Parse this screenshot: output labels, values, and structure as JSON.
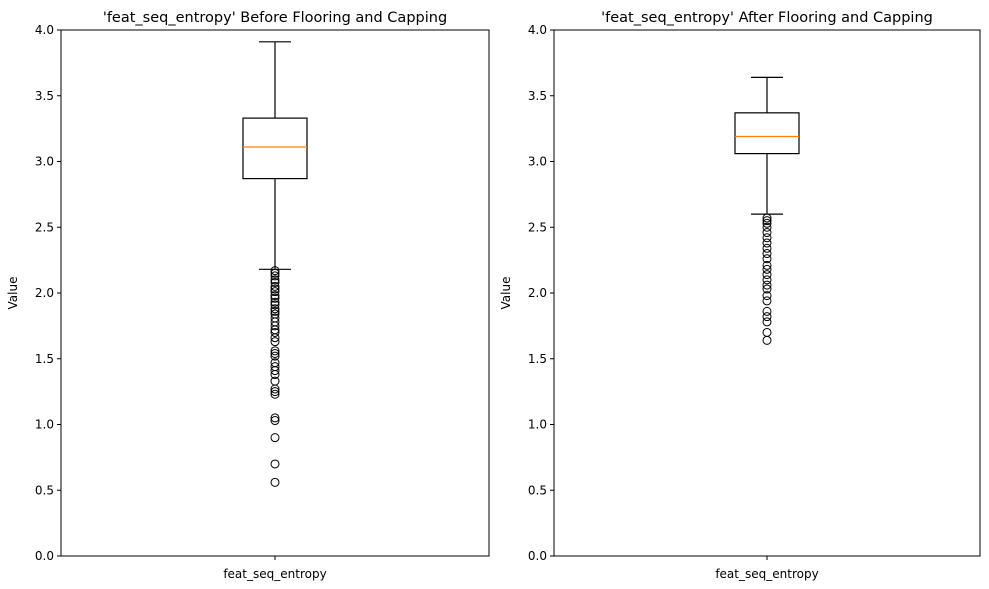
{
  "chart_data": [
    {
      "type": "box",
      "title": "'feat_seq_entropy' Before Flooring and Capping",
      "xlabel": "",
      "ylabel": "Value",
      "ylim": [
        0,
        4.0
      ],
      "yticks": [
        0.0,
        0.5,
        1.0,
        1.5,
        2.0,
        2.5,
        3.0,
        3.5,
        4.0
      ],
      "categories": [
        "feat_seq_entropy"
      ],
      "box": {
        "whisker_low": 2.18,
        "q1": 2.87,
        "median": 3.11,
        "q3": 3.33,
        "whisker_high": 3.91
      },
      "outliers": [
        0.56,
        0.7,
        0.9,
        1.03,
        1.05,
        1.23,
        1.25,
        1.27,
        1.33,
        1.38,
        1.41,
        1.44,
        1.47,
        1.52,
        1.54,
        1.56,
        1.63,
        1.66,
        1.7,
        1.72,
        1.75,
        1.78,
        1.81,
        1.84,
        1.86,
        1.88,
        1.91,
        1.93,
        1.96,
        1.98,
        2.01,
        2.03,
        2.05,
        2.08,
        2.1,
        2.13,
        2.15,
        2.17
      ],
      "colors": {
        "box": "#000000",
        "median": "#ff7f0e"
      },
      "grid": false
    },
    {
      "type": "box",
      "title": "'feat_seq_entropy' After Flooring and Capping",
      "xlabel": "",
      "ylabel": "Value",
      "ylim": [
        0,
        4.0
      ],
      "yticks": [
        0.0,
        0.5,
        1.0,
        1.5,
        2.0,
        2.5,
        3.0,
        3.5,
        4.0
      ],
      "categories": [
        "feat_seq_entropy"
      ],
      "box": {
        "whisker_low": 2.6,
        "q1": 3.06,
        "median": 3.19,
        "q3": 3.37,
        "whisker_high": 3.64
      },
      "outliers": [
        1.64,
        1.7,
        1.78,
        1.82,
        1.86,
        1.94,
        1.98,
        2.03,
        2.06,
        2.1,
        2.14,
        2.18,
        2.21,
        2.26,
        2.3,
        2.34,
        2.38,
        2.42,
        2.46,
        2.5,
        2.53,
        2.55,
        2.57
      ],
      "colors": {
        "box": "#000000",
        "median": "#ff7f0e"
      },
      "grid": false
    }
  ]
}
